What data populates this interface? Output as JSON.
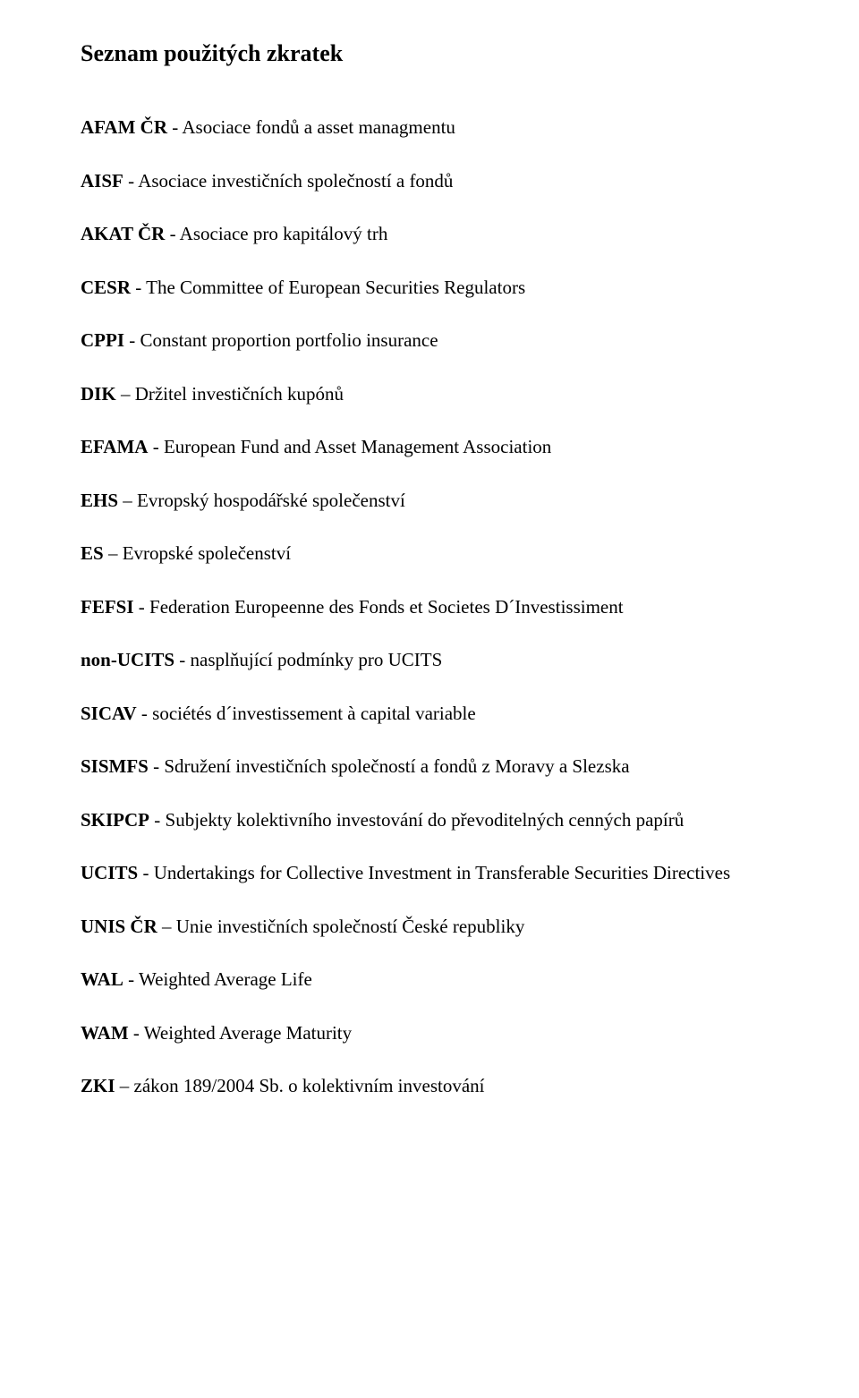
{
  "title": "Seznam použitých zkratek",
  "entries": [
    {
      "abbr": "AFAM ČR",
      "sep": " - ",
      "desc": "Asociace fondů a asset managmentu"
    },
    {
      "abbr": "AISF",
      "sep": " - ",
      "desc": "Asociace investičních společností a fondů"
    },
    {
      "abbr": "AKAT ČR",
      "sep": " - ",
      "desc": "Asociace pro kapitálový trh"
    },
    {
      "abbr": "CESR",
      "sep": " - ",
      "desc": "The Committee of European Securities Regulators"
    },
    {
      "abbr": "CPPI",
      "sep": " - ",
      "desc": "Constant proportion portfolio insurance"
    },
    {
      "abbr": "DIK",
      "sep": " – ",
      "desc": "Držitel investičních kupónů"
    },
    {
      "abbr": "EFAMA",
      "sep": " - ",
      "desc": "European Fund and Asset Management Association"
    },
    {
      "abbr": "EHS",
      "sep": " – ",
      "desc": "Evropský hospodářské společenství"
    },
    {
      "abbr": "ES",
      "sep": " – ",
      "desc": "Evropské společenství"
    },
    {
      "abbr": "FEFSI",
      "sep": " - ",
      "desc": "Federation Europeenne des Fonds et Societes D´Investissiment"
    },
    {
      "abbr": "non-UCITS",
      "sep": " - ",
      "desc": "nasplňující podmínky pro UCITS"
    },
    {
      "abbr": "SICAV",
      "sep": " - ",
      "desc": "sociétés d´investissement à capital variable"
    },
    {
      "abbr": "SISMFS",
      "sep": " - ",
      "desc": "Sdružení investičních společností a fondů z Moravy a Slezska"
    },
    {
      "abbr": "SKIPCP",
      "sep": " - ",
      "desc": "Subjekty kolektivního investování do převoditelných cenných papírů"
    },
    {
      "abbr": "UCITS",
      "sep": " - ",
      "desc": "Undertakings for Collective Investment in Transferable Securities Directives"
    },
    {
      "abbr": "UNIS ČR",
      "sep": " – ",
      "desc": "Unie investičních společností České republiky"
    },
    {
      "abbr": "WAL",
      "sep": " - ",
      "desc": "Weighted Average Life"
    },
    {
      "abbr": "WAM",
      "sep": " - ",
      "desc": "Weighted Average Maturity"
    },
    {
      "abbr": "ZKI",
      "sep": " – ",
      "desc": "zákon 189/2004 Sb. o kolektivním investování"
    }
  ]
}
